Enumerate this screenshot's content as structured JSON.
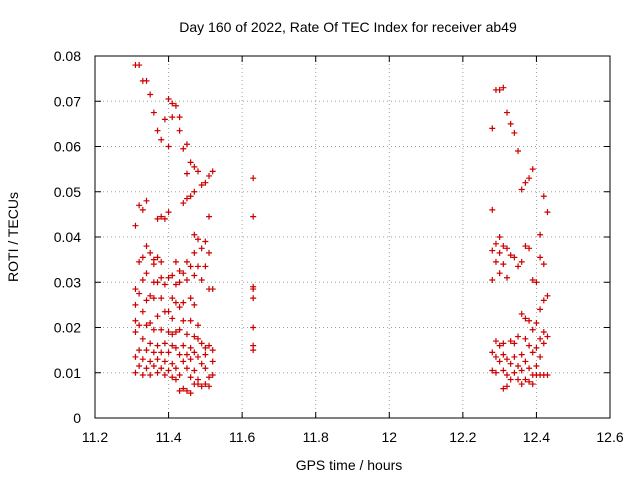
{
  "chart_data": {
    "type": "scatter",
    "title": "Day 160 of 2022, Rate Of TEC Index for receiver ab49",
    "xlabel": "GPS time / hours",
    "ylabel": "ROTI / TECUs",
    "xlim": [
      11.2,
      12.6
    ],
    "ylim": [
      0,
      0.08
    ],
    "xticks": [
      11.2,
      11.4,
      11.6,
      11.8,
      12.0,
      12.2,
      12.4,
      12.6
    ],
    "xtick_labels": [
      "11.2",
      "11.4",
      "11.6",
      "11.8",
      "12",
      "12.2",
      "12.4",
      "12.6"
    ],
    "yticks": [
      0,
      0.01,
      0.02,
      0.03,
      0.04,
      0.05,
      0.06,
      0.07,
      0.08
    ],
    "ytick_labels": [
      "0",
      "0.01",
      "0.02",
      "0.03",
      "0.04",
      "0.05",
      "0.06",
      "0.07",
      "0.08"
    ],
    "grid": true,
    "marker": "plus",
    "marker_color": "#cc0000",
    "series": [
      {
        "name": "ROTI",
        "points": [
          [
            11.31,
            0.078
          ],
          [
            11.32,
            0.078
          ],
          [
            11.33,
            0.0745
          ],
          [
            11.34,
            0.0745
          ],
          [
            11.35,
            0.0715
          ],
          [
            11.36,
            0.0675
          ],
          [
            11.37,
            0.0635
          ],
          [
            11.38,
            0.0615
          ],
          [
            11.39,
            0.066
          ],
          [
            11.4,
            0.0705
          ],
          [
            11.41,
            0.0695
          ],
          [
            11.42,
            0.069
          ],
          [
            11.41,
            0.0665
          ],
          [
            11.43,
            0.0665
          ],
          [
            11.43,
            0.0635
          ],
          [
            11.4,
            0.06
          ],
          [
            11.44,
            0.0595
          ],
          [
            11.45,
            0.0605
          ],
          [
            11.45,
            0.054
          ],
          [
            11.46,
            0.0565
          ],
          [
            11.47,
            0.0555
          ],
          [
            11.48,
            0.0545
          ],
          [
            11.49,
            0.0515
          ],
          [
            11.5,
            0.052
          ],
          [
            11.51,
            0.0535
          ],
          [
            11.52,
            0.0545
          ],
          [
            11.47,
            0.05
          ],
          [
            11.46,
            0.049
          ],
          [
            11.44,
            0.0475
          ],
          [
            11.45,
            0.0485
          ],
          [
            11.51,
            0.0445
          ],
          [
            11.32,
            0.047
          ],
          [
            11.33,
            0.046
          ],
          [
            11.34,
            0.048
          ],
          [
            11.31,
            0.0425
          ],
          [
            11.37,
            0.044
          ],
          [
            11.38,
            0.0445
          ],
          [
            11.4,
            0.0455
          ],
          [
            11.39,
            0.044
          ],
          [
            11.47,
            0.0405
          ],
          [
            11.48,
            0.0395
          ],
          [
            11.5,
            0.039
          ],
          [
            11.49,
            0.0375
          ],
          [
            11.51,
            0.0365
          ],
          [
            11.47,
            0.0365
          ],
          [
            11.34,
            0.038
          ],
          [
            11.35,
            0.0365
          ],
          [
            11.33,
            0.0355
          ],
          [
            11.32,
            0.0345
          ],
          [
            11.36,
            0.035
          ],
          [
            11.37,
            0.0355
          ],
          [
            11.38,
            0.0345
          ],
          [
            11.36,
            0.034
          ],
          [
            11.42,
            0.0345
          ],
          [
            11.43,
            0.0325
          ],
          [
            11.45,
            0.0345
          ],
          [
            11.46,
            0.0335
          ],
          [
            11.48,
            0.0335
          ],
          [
            11.5,
            0.0335
          ],
          [
            11.44,
            0.032
          ],
          [
            11.41,
            0.0315
          ],
          [
            11.4,
            0.031
          ],
          [
            11.38,
            0.031
          ],
          [
            11.34,
            0.032
          ],
          [
            11.33,
            0.0305
          ],
          [
            11.36,
            0.03
          ],
          [
            11.37,
            0.03
          ],
          [
            11.39,
            0.0295
          ],
          [
            11.42,
            0.0295
          ],
          [
            11.43,
            0.03
          ],
          [
            11.45,
            0.0305
          ],
          [
            11.47,
            0.0315
          ],
          [
            11.49,
            0.0305
          ],
          [
            11.51,
            0.0285
          ],
          [
            11.52,
            0.0285
          ],
          [
            11.31,
            0.0285
          ],
          [
            11.32,
            0.0275
          ],
          [
            11.35,
            0.027
          ],
          [
            11.34,
            0.026
          ],
          [
            11.36,
            0.0265
          ],
          [
            11.38,
            0.0265
          ],
          [
            11.41,
            0.0265
          ],
          [
            11.42,
            0.0255
          ],
          [
            11.44,
            0.0255
          ],
          [
            11.43,
            0.0245
          ],
          [
            11.46,
            0.0265
          ],
          [
            11.47,
            0.025
          ],
          [
            11.31,
            0.025
          ],
          [
            11.33,
            0.0235
          ],
          [
            11.37,
            0.0225
          ],
          [
            11.39,
            0.0235
          ],
          [
            11.4,
            0.0235
          ],
          [
            11.41,
            0.022
          ],
          [
            11.44,
            0.0215
          ],
          [
            11.46,
            0.0215
          ],
          [
            11.48,
            0.0205
          ],
          [
            11.31,
            0.0215
          ],
          [
            11.32,
            0.0205
          ],
          [
            11.34,
            0.0205
          ],
          [
            11.35,
            0.021
          ],
          [
            11.36,
            0.0195
          ],
          [
            11.38,
            0.0195
          ],
          [
            11.4,
            0.019
          ],
          [
            11.41,
            0.0185
          ],
          [
            11.42,
            0.019
          ],
          [
            11.43,
            0.0195
          ],
          [
            11.45,
            0.0185
          ],
          [
            11.47,
            0.018
          ],
          [
            11.48,
            0.0175
          ],
          [
            11.31,
            0.019
          ],
          [
            11.33,
            0.0175
          ],
          [
            11.35,
            0.0165
          ],
          [
            11.37,
            0.016
          ],
          [
            11.39,
            0.0165
          ],
          [
            11.41,
            0.016
          ],
          [
            11.42,
            0.0155
          ],
          [
            11.44,
            0.016
          ],
          [
            11.46,
            0.0155
          ],
          [
            11.49,
            0.0165
          ],
          [
            11.5,
            0.0155
          ],
          [
            11.51,
            0.016
          ],
          [
            11.52,
            0.015
          ],
          [
            11.32,
            0.015
          ],
          [
            11.34,
            0.015
          ],
          [
            11.36,
            0.0145
          ],
          [
            11.38,
            0.0145
          ],
          [
            11.4,
            0.0145
          ],
          [
            11.43,
            0.014
          ],
          [
            11.45,
            0.014
          ],
          [
            11.47,
            0.0145
          ],
          [
            11.48,
            0.0135
          ],
          [
            11.5,
            0.014
          ],
          [
            11.31,
            0.0135
          ],
          [
            11.33,
            0.013
          ],
          [
            11.35,
            0.0125
          ],
          [
            11.37,
            0.013
          ],
          [
            11.39,
            0.0125
          ],
          [
            11.41,
            0.012
          ],
          [
            11.44,
            0.0125
          ],
          [
            11.46,
            0.013
          ],
          [
            11.49,
            0.012
          ],
          [
            11.52,
            0.0125
          ],
          [
            11.32,
            0.0115
          ],
          [
            11.34,
            0.011
          ],
          [
            11.36,
            0.0115
          ],
          [
            11.38,
            0.011
          ],
          [
            11.4,
            0.0105
          ],
          [
            11.42,
            0.011
          ],
          [
            11.45,
            0.011
          ],
          [
            11.47,
            0.0105
          ],
          [
            11.5,
            0.011
          ],
          [
            11.31,
            0.01
          ],
          [
            11.33,
            0.0095
          ],
          [
            11.35,
            0.0095
          ],
          [
            11.37,
            0.01
          ],
          [
            11.39,
            0.0095
          ],
          [
            11.41,
            0.009
          ],
          [
            11.43,
            0.0095
          ],
          [
            11.46,
            0.009
          ],
          [
            11.48,
            0.0085
          ],
          [
            11.51,
            0.009
          ],
          [
            11.52,
            0.0095
          ],
          [
            11.42,
            0.0085
          ],
          [
            11.44,
            0.0065
          ],
          [
            11.45,
            0.006
          ],
          [
            11.46,
            0.0055
          ],
          [
            11.43,
            0.006
          ],
          [
            11.48,
            0.0075
          ],
          [
            11.49,
            0.007
          ],
          [
            11.5,
            0.0075
          ],
          [
            11.51,
            0.007
          ],
          [
            11.47,
            0.0075
          ],
          [
            11.63,
            0.053
          ],
          [
            11.63,
            0.0445
          ],
          [
            11.63,
            0.029
          ],
          [
            11.63,
            0.0285
          ],
          [
            11.63,
            0.0265
          ],
          [
            11.63,
            0.02
          ],
          [
            11.63,
            0.016
          ],
          [
            11.63,
            0.015
          ],
          [
            12.28,
            0.064
          ],
          [
            12.29,
            0.0725
          ],
          [
            12.3,
            0.0725
          ],
          [
            12.31,
            0.073
          ],
          [
            12.32,
            0.0675
          ],
          [
            12.33,
            0.065
          ],
          [
            12.34,
            0.063
          ],
          [
            12.35,
            0.059
          ],
          [
            12.36,
            0.0505
          ],
          [
            12.37,
            0.052
          ],
          [
            12.38,
            0.053
          ],
          [
            12.39,
            0.055
          ],
          [
            12.28,
            0.046
          ],
          [
            12.42,
            0.049
          ],
          [
            12.43,
            0.0455
          ],
          [
            12.41,
            0.0405
          ],
          [
            12.3,
            0.04
          ],
          [
            12.29,
            0.0385
          ],
          [
            12.31,
            0.038
          ],
          [
            12.32,
            0.0375
          ],
          [
            12.37,
            0.038
          ],
          [
            12.38,
            0.0375
          ],
          [
            12.28,
            0.037
          ],
          [
            12.3,
            0.0365
          ],
          [
            12.33,
            0.036
          ],
          [
            12.34,
            0.0355
          ],
          [
            12.36,
            0.0345
          ],
          [
            12.29,
            0.0345
          ],
          [
            12.31,
            0.034
          ],
          [
            12.35,
            0.0335
          ],
          [
            12.41,
            0.0355
          ],
          [
            12.42,
            0.034
          ],
          [
            12.3,
            0.032
          ],
          [
            12.32,
            0.031
          ],
          [
            12.28,
            0.0305
          ],
          [
            12.39,
            0.0305
          ],
          [
            12.4,
            0.03
          ],
          [
            12.43,
            0.027
          ],
          [
            12.42,
            0.026
          ],
          [
            12.41,
            0.024
          ],
          [
            12.36,
            0.023
          ],
          [
            12.37,
            0.022
          ],
          [
            12.38,
            0.0215
          ],
          [
            12.4,
            0.021
          ],
          [
            12.39,
            0.0195
          ],
          [
            12.42,
            0.019
          ],
          [
            12.43,
            0.018
          ],
          [
            12.41,
            0.0175
          ],
          [
            12.29,
            0.017
          ],
          [
            12.3,
            0.016
          ],
          [
            12.31,
            0.0165
          ],
          [
            12.33,
            0.017
          ],
          [
            12.34,
            0.0165
          ],
          [
            12.35,
            0.018
          ],
          [
            12.37,
            0.0175
          ],
          [
            12.38,
            0.016
          ],
          [
            12.4,
            0.0155
          ],
          [
            12.42,
            0.0165
          ],
          [
            12.28,
            0.0145
          ],
          [
            12.29,
            0.0135
          ],
          [
            12.31,
            0.014
          ],
          [
            12.32,
            0.013
          ],
          [
            12.34,
            0.0135
          ],
          [
            12.36,
            0.014
          ],
          [
            12.39,
            0.0145
          ],
          [
            12.41,
            0.0135
          ],
          [
            12.3,
            0.0125
          ],
          [
            12.33,
            0.012
          ],
          [
            12.35,
            0.0115
          ],
          [
            12.37,
            0.0125
          ],
          [
            12.38,
            0.011
          ],
          [
            12.4,
            0.0115
          ],
          [
            12.28,
            0.0105
          ],
          [
            12.29,
            0.01
          ],
          [
            12.31,
            0.0105
          ],
          [
            12.32,
            0.0095
          ],
          [
            12.34,
            0.01
          ],
          [
            12.36,
            0.0105
          ],
          [
            12.39,
            0.0095
          ],
          [
            12.4,
            0.0095
          ],
          [
            12.41,
            0.0095
          ],
          [
            12.42,
            0.0095
          ],
          [
            12.43,
            0.0095
          ],
          [
            12.37,
            0.0085
          ],
          [
            12.38,
            0.008
          ],
          [
            12.36,
            0.0075
          ],
          [
            12.33,
            0.0085
          ],
          [
            12.32,
            0.007
          ],
          [
            12.31,
            0.0065
          ],
          [
            12.39,
            0.0075
          ],
          [
            12.35,
            0.0085
          ]
        ]
      }
    ]
  }
}
